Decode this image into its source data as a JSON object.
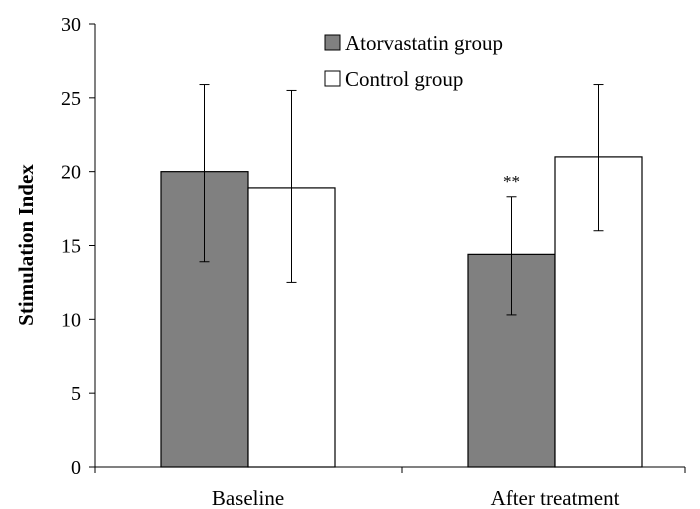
{
  "chart_data": {
    "type": "bar",
    "ylabel": "Stimulation Index",
    "ylim": [
      0,
      30
    ],
    "yticks": [
      "0",
      "5",
      "10",
      "15",
      "20",
      "25",
      "30"
    ],
    "categories": [
      "Baseline",
      "After treatment"
    ],
    "series": [
      {
        "name": "Atorvastatin group",
        "color": "#808080",
        "values": [
          20.0,
          14.4
        ],
        "err_low": [
          13.9,
          10.3
        ],
        "err_high": [
          25.9,
          18.3
        ]
      },
      {
        "name": "Control group",
        "color": "#ffffff",
        "values": [
          18.9,
          21.0
        ],
        "err_low": [
          12.5,
          16.0
        ],
        "err_high": [
          25.5,
          25.9
        ]
      }
    ],
    "annotations": [
      {
        "text": "**",
        "series": 0,
        "category": 1
      }
    ],
    "legend_position": "top-right",
    "grid": false
  }
}
